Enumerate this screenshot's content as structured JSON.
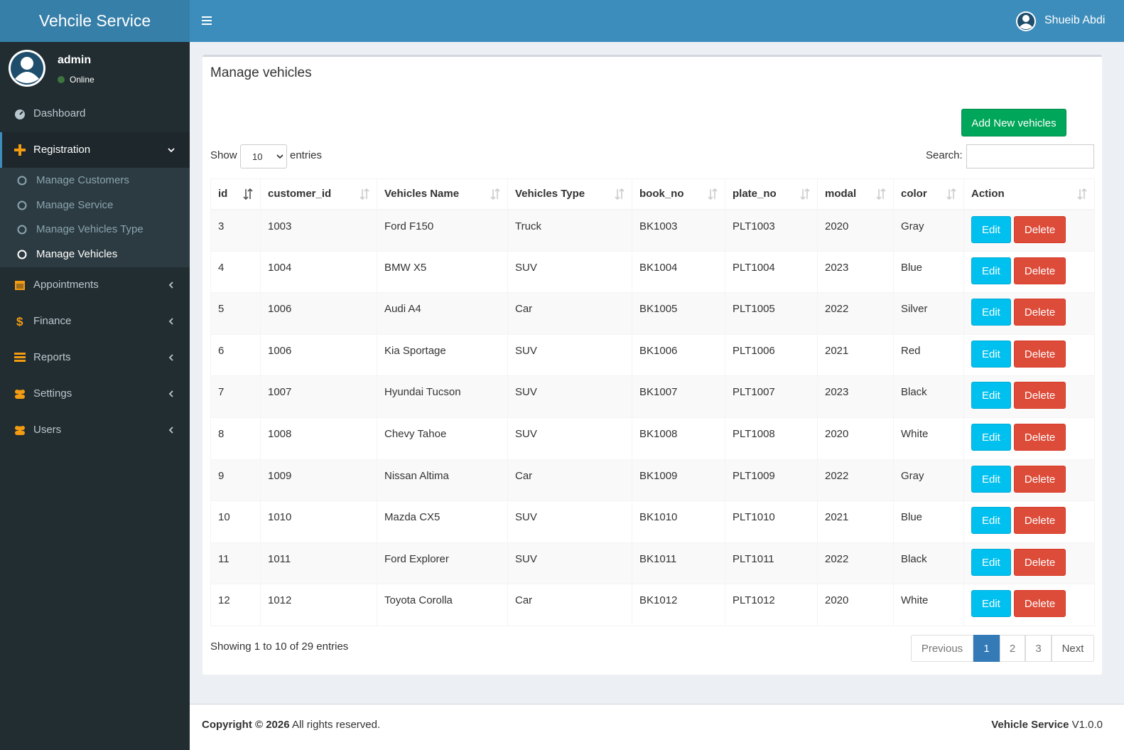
{
  "header": {
    "brand": "Vehcile Service",
    "user": "Shueib Abdi"
  },
  "sidebar": {
    "user": {
      "name": "admin",
      "status": "Online"
    },
    "menu": [
      {
        "label": "Dashboard"
      },
      {
        "label": "Registration",
        "children": [
          "Manage Customers",
          "Manage Service",
          "Manage Vehicles Type",
          "Manage Vehicles"
        ]
      },
      {
        "label": "Appointments"
      },
      {
        "label": "Finance"
      },
      {
        "label": "Reports"
      },
      {
        "label": "Settings"
      },
      {
        "label": "Users"
      }
    ]
  },
  "content": {
    "title": "Manage vehicles",
    "add_button": "Add New vehicles",
    "length": {
      "show": "Show",
      "value": 10,
      "entries": "entries"
    },
    "search": "Search:",
    "table": {
      "columns": [
        "id",
        "customer_id",
        "Vehicles Name",
        "Vehicles Type",
        "book_no",
        "plate_no",
        "modal",
        "color",
        "Action"
      ],
      "rows": [
        [
          3,
          1003,
          "Ford F150",
          "Truck",
          "BK1003",
          "PLT1003",
          2020,
          "Gray"
        ],
        [
          4,
          1004,
          "BMW X5",
          "SUV",
          "BK1004",
          "PLT1004",
          2023,
          "Blue"
        ],
        [
          5,
          1006,
          "Audi A4",
          "Car",
          "BK1005",
          "PLT1005",
          2022,
          "Silver"
        ],
        [
          6,
          1006,
          "Kia Sportage",
          "SUV",
          "BK1006",
          "PLT1006",
          2021,
          "Red"
        ],
        [
          7,
          1007,
          "Hyundai Tucson",
          "SUV",
          "BK1007",
          "PLT1007",
          2023,
          "Black"
        ],
        [
          8,
          1008,
          "Chevy Tahoe",
          "SUV",
          "BK1008",
          "PLT1008",
          2020,
          "White"
        ],
        [
          9,
          1009,
          "Nissan Altima",
          "Car",
          "BK1009",
          "PLT1009",
          2022,
          "Gray"
        ],
        [
          10,
          1010,
          "Mazda CX5",
          "SUV",
          "BK1010",
          "PLT1010",
          2021,
          "Blue"
        ],
        [
          11,
          1011,
          "Ford Explorer",
          "SUV",
          "BK1011",
          "PLT1011",
          2022,
          "Black"
        ],
        [
          12,
          1012,
          "Toyota Corolla",
          "Car",
          "BK1012",
          "PLT1012",
          2020,
          "White"
        ]
      ],
      "actions": {
        "edit": "Edit",
        "delete": "Delete"
      }
    },
    "info": "Showing 1 to 10 of 29 entries",
    "pagination": [
      "Previous",
      1,
      2,
      3,
      "Next"
    ]
  },
  "footer": {
    "copyright": "Copyright © 2026",
    "rights": "All rights reserved.",
    "app": "Vehicle Service",
    "version": "V1.0.0"
  }
}
